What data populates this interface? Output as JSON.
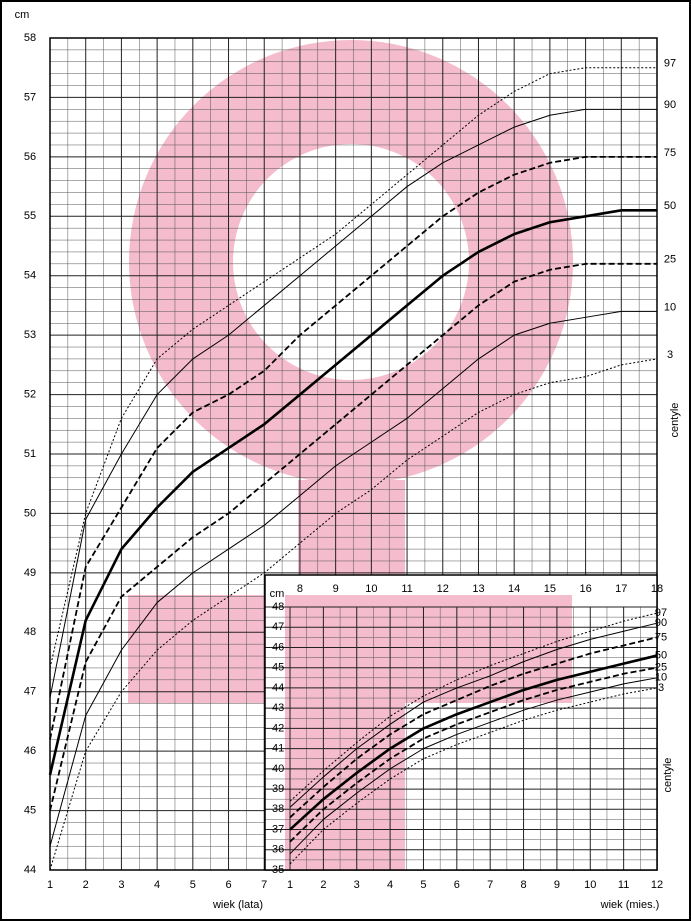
{
  "chart_data": [
    {
      "type": "line",
      "y_label": "cm",
      "x_label": "wiek (lata)",
      "legend_title": "centyle",
      "x": [
        1,
        2,
        3,
        4,
        5,
        6,
        7,
        8,
        9,
        10,
        11,
        12,
        13,
        14,
        15,
        16,
        17,
        18
      ],
      "xlim": [
        1,
        18
      ],
      "ylim": [
        44,
        58
      ],
      "xticks": [
        1,
        2,
        3,
        4,
        5,
        6,
        7,
        8,
        9,
        10,
        11,
        12,
        13,
        14,
        15,
        16,
        17,
        18
      ],
      "yticks": [
        44,
        45,
        46,
        47,
        48,
        49,
        50,
        51,
        52,
        53,
        54,
        55,
        56,
        57,
        58
      ],
      "grid": true,
      "series": [
        {
          "name": "3",
          "color": "#000000",
          "style": "dotted",
          "values": [
            44.0,
            46.0,
            47.0,
            47.7,
            48.2,
            48.6,
            49.0,
            49.5,
            50.0,
            50.4,
            50.9,
            51.3,
            51.7,
            52.0,
            52.2,
            52.3,
            52.5,
            52.6
          ]
        },
        {
          "name": "10",
          "color": "#000000",
          "style": "solid",
          "values": [
            44.4,
            46.6,
            47.7,
            48.5,
            49.0,
            49.4,
            49.8,
            50.3,
            50.8,
            51.2,
            51.6,
            52.1,
            52.6,
            53.0,
            53.2,
            53.3,
            53.4,
            53.4
          ]
        },
        {
          "name": "25",
          "color": "#000000",
          "style": "dashed",
          "values": [
            45.0,
            47.5,
            48.6,
            49.1,
            49.6,
            50.0,
            50.5,
            51.0,
            51.5,
            52.0,
            52.5,
            53.0,
            53.5,
            53.9,
            54.1,
            54.2,
            54.2,
            54.2
          ]
        },
        {
          "name": "50",
          "color": "#000000",
          "style": "bold",
          "values": [
            45.6,
            48.2,
            49.4,
            50.1,
            50.7,
            51.1,
            51.5,
            52.0,
            52.5,
            53.0,
            53.5,
            54.0,
            54.4,
            54.7,
            54.9,
            55.0,
            55.1,
            55.1
          ]
        },
        {
          "name": "75",
          "color": "#000000",
          "style": "dashed",
          "values": [
            46.2,
            49.1,
            50.1,
            51.1,
            51.7,
            52.0,
            52.4,
            53.0,
            53.5,
            54.0,
            54.5,
            55.0,
            55.4,
            55.7,
            55.9,
            56.0,
            56.0,
            56.0
          ]
        },
        {
          "name": "90",
          "color": "#000000",
          "style": "solid",
          "values": [
            46.9,
            49.9,
            51.0,
            52.0,
            52.6,
            53.0,
            53.5,
            54.0,
            54.5,
            55.0,
            55.5,
            55.9,
            56.2,
            56.5,
            56.7,
            56.8,
            56.8,
            56.8
          ]
        },
        {
          "name": "97",
          "color": "#000000",
          "style": "dotted",
          "values": [
            47.4,
            50.0,
            51.6,
            52.6,
            53.1,
            53.5,
            53.9,
            54.3,
            54.7,
            55.2,
            55.7,
            56.2,
            56.7,
            57.1,
            57.4,
            57.5,
            57.5,
            57.5
          ]
        }
      ]
    },
    {
      "type": "line",
      "y_label": "cm",
      "x_label": "wiek (mies.)",
      "legend_title": "centyle",
      "x": [
        1,
        2,
        3,
        4,
        5,
        6,
        7,
        8,
        9,
        10,
        11,
        12
      ],
      "xlim": [
        0.25,
        12
      ],
      "ylim": [
        35,
        48
      ],
      "xticks": [
        1,
        2,
        3,
        4,
        5,
        6,
        7,
        8,
        9,
        10,
        11,
        12
      ],
      "yticks": [
        35,
        36,
        37,
        38,
        39,
        40,
        41,
        42,
        43,
        44,
        45,
        46,
        47,
        48
      ],
      "grid": true,
      "series": [
        {
          "name": "3",
          "color": "#000000",
          "style": "dotted",
          "values": [
            35.3,
            37.0,
            38.3,
            39.5,
            40.5,
            41.2,
            41.8,
            42.4,
            42.9,
            43.3,
            43.7,
            44.0
          ]
        },
        {
          "name": "10",
          "color": "#000000",
          "style": "solid",
          "values": [
            35.8,
            37.5,
            38.8,
            40.0,
            41.0,
            41.7,
            42.3,
            42.9,
            43.4,
            43.8,
            44.2,
            44.5
          ]
        },
        {
          "name": "25",
          "color": "#000000",
          "style": "dashed",
          "values": [
            36.4,
            38.0,
            39.3,
            40.5,
            41.5,
            42.2,
            42.8,
            43.4,
            43.9,
            44.3,
            44.7,
            45.0
          ]
        },
        {
          "name": "50",
          "color": "#000000",
          "style": "bold",
          "values": [
            37.0,
            38.5,
            39.8,
            41.0,
            42.0,
            42.7,
            43.3,
            43.9,
            44.4,
            44.8,
            45.2,
            45.6
          ]
        },
        {
          "name": "75",
          "color": "#000000",
          "style": "dashed",
          "values": [
            37.6,
            39.1,
            40.5,
            41.7,
            42.7,
            43.4,
            44.1,
            44.7,
            45.2,
            45.7,
            46.1,
            46.5
          ]
        },
        {
          "name": "90",
          "color": "#000000",
          "style": "solid",
          "values": [
            38.1,
            39.6,
            41.0,
            42.2,
            43.3,
            44.0,
            44.6,
            45.3,
            45.9,
            46.4,
            46.8,
            47.2
          ]
        },
        {
          "name": "97",
          "color": "#000000",
          "style": "dotted",
          "values": [
            38.4,
            39.9,
            41.3,
            42.6,
            43.6,
            44.4,
            45.1,
            45.7,
            46.3,
            46.8,
            47.3,
            47.7
          ]
        }
      ]
    }
  ]
}
